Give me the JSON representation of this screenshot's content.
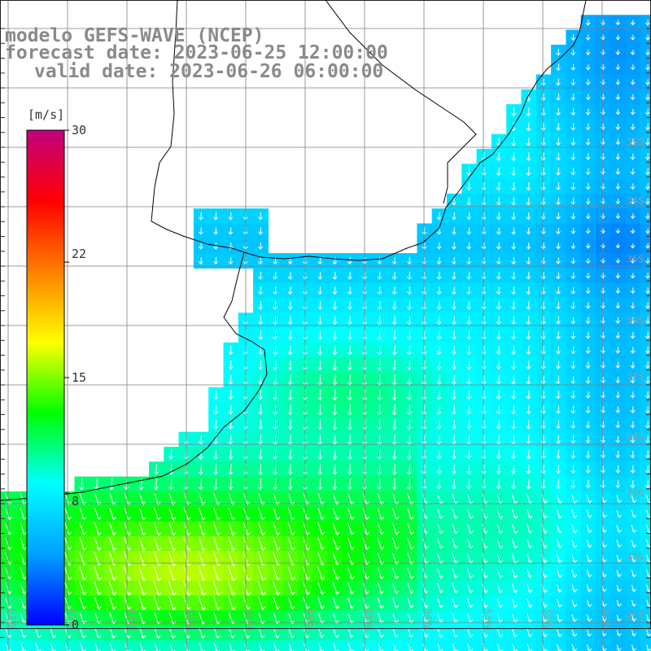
{
  "title": {
    "model_line": "modelo GEFS-WAVE (NCEP)",
    "forecast_line": "forecast date: 2023-06-25 12:00:00",
    "valid_line": "valid date: 2023-06-26 06:00:00"
  },
  "colorbar": {
    "unit": "[m/s]",
    "ticks": [
      "30",
      "22",
      "15",
      "8",
      "0"
    ],
    "tick_values": [
      30,
      22,
      15,
      8,
      0
    ],
    "range": [
      0,
      30
    ],
    "colors": [
      "#0000ff",
      "#00a0ff",
      "#00ffff",
      "#00ff00",
      "#ffff00",
      "#ff8000",
      "#ff0000",
      "#c0007f"
    ]
  },
  "grid": {
    "longitude_labels": [
      "61W",
      "60W",
      "59W",
      "58W",
      "57W",
      "56W",
      "55W",
      "54W",
      "53W",
      "52W",
      "51W"
    ],
    "latitude_labels": [
      "33S",
      "34S",
      "35S",
      "36S",
      "37S",
      "38S",
      "39S",
      "40S",
      "41S"
    ]
  },
  "colors": {
    "grid_line": "#7f7f7f",
    "coast_line": "#000000",
    "title_text": "#8a8a8a",
    "arrow": "#ffffff"
  }
}
